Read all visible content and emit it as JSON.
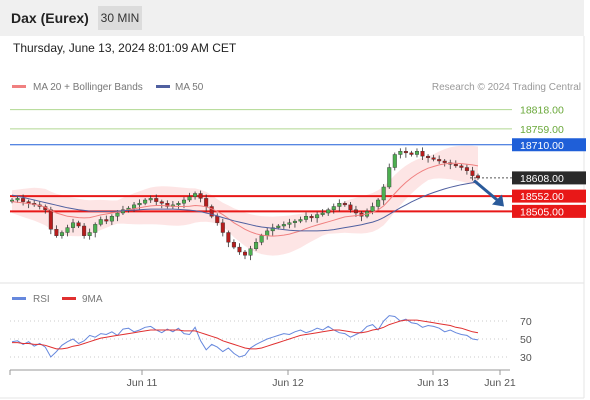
{
  "header": {
    "instrument": "Dax (Eurex)",
    "timeframe": "30 MIN",
    "datetime": "Thursday, June 13, 2024 8:01:09 AM CET"
  },
  "legend": {
    "ma20_bb": "MA 20 + Bollinger Bands",
    "ma50": "MA 50",
    "credit": "Research © 2024 Trading Central"
  },
  "rsi_legend": {
    "rsi": "RSI",
    "ma9": "9MA"
  },
  "colors": {
    "candle_up": "#4caf50",
    "candle_down": "#b71c1c",
    "bollinger_fill": "#fde0e0",
    "ma20": "#f08080",
    "ma50": "#5060a0",
    "resistance_green": "#b0d890",
    "level_blue": "#1f5fd8",
    "level_red": "#e81818",
    "price_box": "#2a2a2a",
    "arrow": "#2a5a9a",
    "rsi": "#6688dd",
    "rsi_ma": "#e03030"
  },
  "chart_data": [
    {
      "type": "candlestick",
      "title": "Dax (Eurex) 30 MIN",
      "x_ticks": [
        "Jun 11",
        "Jun 12",
        "Jun 13",
        "Jun 21"
      ],
      "ylim": [
        18300,
        18860
      ],
      "current_price": 18608.0,
      "levels": [
        {
          "label": "18818.00",
          "value": 18818.0,
          "kind": "resistance"
        },
        {
          "label": "18759.00",
          "value": 18759.0,
          "kind": "resistance"
        },
        {
          "label": "18710.00",
          "value": 18710.0,
          "kind": "pivot"
        },
        {
          "label": "18552.00",
          "value": 18552.0,
          "kind": "support"
        },
        {
          "label": "18505.00",
          "value": 18505.0,
          "kind": "support"
        }
      ],
      "forecast_arrow": {
        "from": 18600,
        "to": 18520,
        "direction": "down"
      },
      "ohlc_closes": [
        18540,
        18545,
        18535,
        18530,
        18525,
        18520,
        18510,
        18450,
        18430,
        18440,
        18455,
        18470,
        18460,
        18430,
        18440,
        18465,
        18480,
        18475,
        18490,
        18500,
        18510,
        18515,
        18525,
        18530,
        18540,
        18545,
        18535,
        18530,
        18520,
        18525,
        18530,
        18540,
        18550,
        18560,
        18545,
        18520,
        18490,
        18470,
        18440,
        18410,
        18395,
        18380,
        18370,
        18390,
        18410,
        18430,
        18445,
        18455,
        18460,
        18465,
        18470,
        18475,
        18480,
        18490,
        18485,
        18495,
        18500,
        18510,
        18520,
        18530,
        18525,
        18510,
        18500,
        18490,
        18505,
        18520,
        18540,
        18580,
        18640,
        18680,
        18690,
        18685,
        18680,
        18690,
        18675,
        18670,
        18665,
        18660,
        18655,
        18650,
        18645,
        18640,
        18630,
        18615,
        18608
      ],
      "ma20": [
        18535,
        18533,
        18531,
        18529,
        18527,
        18523,
        18518,
        18508,
        18500,
        18495,
        18490,
        18488,
        18486,
        18485,
        18486,
        18490,
        18494,
        18497,
        18500,
        18503,
        18507,
        18510,
        18513,
        18516,
        18519,
        18522,
        18523,
        18523,
        18522,
        18521,
        18520,
        18520,
        18521,
        18523,
        18522,
        18519,
        18513,
        18505,
        18495,
        18483,
        18470,
        18460,
        18450,
        18442,
        18436,
        18432,
        18430,
        18429,
        18430,
        18432,
        18435,
        18440,
        18445,
        18452,
        18458,
        18463,
        18468,
        18473,
        18478,
        18483,
        18488,
        18490,
        18492,
        18494,
        18497,
        18502,
        18510,
        18522,
        18540,
        18560,
        18578,
        18594,
        18608,
        18620,
        18630,
        18638,
        18643,
        18648,
        18651,
        18653,
        18653,
        18652,
        18650,
        18648,
        18645
      ],
      "ma50": [
        18555,
        18552,
        18548,
        18544,
        18540,
        18536,
        18532,
        18528,
        18524,
        18520,
        18516,
        18513,
        18510,
        18508,
        18506,
        18505,
        18505,
        18505,
        18505,
        18506,
        18507,
        18508,
        18509,
        18510,
        18511,
        18512,
        18512,
        18512,
        18512,
        18512,
        18511,
        18510,
        18509,
        18507,
        18504,
        18500,
        18496,
        18491,
        18486,
        18481,
        18476,
        18472,
        18468,
        18464,
        18460,
        18457,
        18455,
        18453,
        18451,
        18449,
        18447,
        18446,
        18445,
        18445,
        18445,
        18445,
        18446,
        18447,
        18449,
        18452,
        18455,
        18458,
        18461,
        18464,
        18468,
        18472,
        18478,
        18486,
        18496,
        18506,
        18516,
        18525,
        18534,
        18542,
        18550,
        18557,
        18563,
        18569,
        18574,
        18579,
        18583,
        18587,
        18590,
        18593,
        18595
      ]
    },
    {
      "type": "line",
      "title": "RSI",
      "ylim": [
        0,
        100
      ],
      "y_ticks": [
        30,
        50,
        70
      ],
      "series": [
        {
          "name": "RSI",
          "values": [
            47,
            48,
            44,
            47,
            42,
            45,
            41,
            30,
            36,
            43,
            47,
            50,
            45,
            48,
            54,
            52,
            56,
            55,
            58,
            54,
            61,
            62,
            58,
            60,
            63,
            64,
            60,
            57,
            61,
            58,
            62,
            56,
            55,
            63,
            48,
            38,
            44,
            41,
            36,
            40,
            34,
            30,
            32,
            40,
            44,
            47,
            50,
            52,
            54,
            56,
            55,
            58,
            60,
            57,
            59,
            62,
            60,
            64,
            60,
            57,
            56,
            52,
            55,
            58,
            64,
            66,
            60,
            70,
            76,
            75,
            70,
            72,
            68,
            67,
            63,
            65,
            64,
            62,
            58,
            60,
            57,
            55,
            54,
            50,
            49
          ]
        },
        {
          "name": "9MA",
          "values": [
            46,
            46,
            45,
            45,
            44,
            44,
            43,
            41,
            39,
            39,
            40,
            42,
            43,
            45,
            47,
            49,
            51,
            52,
            53,
            54,
            55,
            56,
            57,
            58,
            59,
            60,
            60,
            60,
            60,
            60,
            60,
            59,
            59,
            59,
            57,
            55,
            53,
            51,
            48,
            46,
            44,
            42,
            40,
            39,
            39,
            40,
            42,
            44,
            46,
            48,
            50,
            52,
            54,
            55,
            56,
            57,
            58,
            59,
            60,
            60,
            59,
            58,
            57,
            57,
            58,
            60,
            61,
            63,
            66,
            68,
            70,
            71,
            71,
            71,
            70,
            69,
            68,
            67,
            66,
            65,
            63,
            62,
            60,
            58,
            57
          ]
        }
      ]
    }
  ]
}
